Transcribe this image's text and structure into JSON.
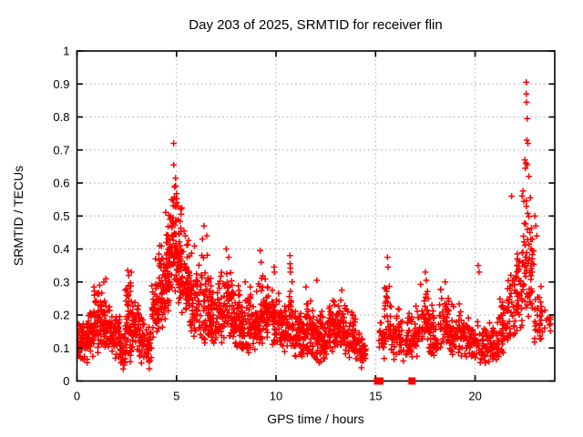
{
  "figure": {
    "title": "Day 203 of 2025, SRMTID for receiver flin",
    "xlabel": "GPS time / hours",
    "ylabel": "SRMTID / TECUs",
    "background": "#ffffff"
  },
  "chart_data": {
    "type": "scatter",
    "title": "Day 203 of 2025, SRMTID for receiver flin",
    "xlabel": "GPS time / hours",
    "ylabel": "SRMTID / TECUs",
    "xlim": [
      0,
      24
    ],
    "ylim": [
      0,
      1
    ],
    "xticks": {
      "values": [
        0,
        5,
        10,
        15,
        20
      ],
      "labels": [
        "0",
        "5",
        "10",
        "15",
        "20"
      ]
    },
    "yticks": {
      "values": [
        0,
        0.1,
        0.2,
        0.3,
        0.4,
        0.5,
        0.6,
        0.7,
        0.8,
        0.9,
        1
      ],
      "labels": [
        "0",
        "0.1",
        "0.2",
        "0.3",
        "0.4",
        "0.5",
        "0.6",
        "0.7",
        "0.8",
        "0.9",
        "1"
      ]
    },
    "grid": true,
    "legend": "none",
    "marker": "plus",
    "marker_color": "#ff0000",
    "grid_color": "#b5b5b5",
    "axis_color": "#000000",
    "seed": 7,
    "density_bands_x0_x1_count_ymin_ymode_ymax": [
      [
        0.0,
        0.45,
        55,
        0.06,
        0.1,
        0.18
      ],
      [
        0.45,
        0.8,
        45,
        0.05,
        0.11,
        0.22
      ],
      [
        0.8,
        1.1,
        40,
        0.08,
        0.14,
        0.3
      ],
      [
        1.1,
        1.45,
        45,
        0.08,
        0.16,
        0.31
      ],
      [
        1.45,
        1.8,
        40,
        0.07,
        0.13,
        0.25
      ],
      [
        1.8,
        2.15,
        45,
        0.06,
        0.12,
        0.22
      ],
      [
        2.15,
        2.4,
        26,
        0.02,
        0.08,
        0.16
      ],
      [
        2.4,
        2.75,
        55,
        0.04,
        0.15,
        0.34
      ],
      [
        2.75,
        3.1,
        40,
        0.08,
        0.15,
        0.27
      ],
      [
        3.1,
        3.45,
        35,
        0.05,
        0.11,
        0.2
      ],
      [
        3.45,
        3.75,
        32,
        0.03,
        0.1,
        0.18
      ],
      [
        3.75,
        4.1,
        45,
        0.1,
        0.2,
        0.34
      ],
      [
        4.1,
        4.45,
        55,
        0.13,
        0.26,
        0.44
      ],
      [
        4.45,
        4.75,
        55,
        0.18,
        0.35,
        0.58
      ],
      [
        4.75,
        5.05,
        60,
        0.22,
        0.42,
        0.63
      ],
      [
        5.05,
        5.35,
        55,
        0.2,
        0.35,
        0.55
      ],
      [
        5.35,
        5.7,
        50,
        0.15,
        0.28,
        0.46
      ],
      [
        5.7,
        6.2,
        55,
        0.12,
        0.24,
        0.42
      ],
      [
        6.2,
        6.6,
        45,
        0.1,
        0.2,
        0.4
      ],
      [
        6.6,
        7.0,
        50,
        0.1,
        0.18,
        0.32
      ],
      [
        7.0,
        7.45,
        50,
        0.1,
        0.18,
        0.34
      ],
      [
        7.45,
        7.8,
        40,
        0.1,
        0.2,
        0.38
      ],
      [
        7.8,
        8.25,
        55,
        0.08,
        0.15,
        0.3
      ],
      [
        8.25,
        8.7,
        50,
        0.08,
        0.14,
        0.28
      ],
      [
        8.7,
        9.2,
        55,
        0.08,
        0.15,
        0.34
      ],
      [
        9.2,
        9.7,
        55,
        0.1,
        0.18,
        0.33
      ],
      [
        9.7,
        10.2,
        55,
        0.1,
        0.17,
        0.3
      ],
      [
        10.2,
        10.6,
        45,
        0.08,
        0.14,
        0.26
      ],
      [
        10.6,
        10.85,
        28,
        0.08,
        0.15,
        0.36
      ],
      [
        10.85,
        11.3,
        50,
        0.06,
        0.12,
        0.24
      ],
      [
        11.3,
        11.75,
        50,
        0.06,
        0.13,
        0.28
      ],
      [
        11.75,
        12.2,
        50,
        0.05,
        0.11,
        0.23
      ],
      [
        12.2,
        12.65,
        48,
        0.05,
        0.11,
        0.22
      ],
      [
        12.65,
        13.1,
        50,
        0.07,
        0.14,
        0.27
      ],
      [
        13.1,
        13.55,
        50,
        0.08,
        0.15,
        0.28
      ],
      [
        13.55,
        14.0,
        45,
        0.06,
        0.12,
        0.22
      ],
      [
        14.0,
        14.5,
        45,
        0.03,
        0.09,
        0.17
      ],
      [
        15.15,
        15.45,
        20,
        0.05,
        0.11,
        0.22
      ],
      [
        15.45,
        15.7,
        22,
        0.1,
        0.2,
        0.37
      ],
      [
        15.7,
        16.2,
        40,
        0.06,
        0.13,
        0.26
      ],
      [
        16.2,
        16.7,
        40,
        0.05,
        0.11,
        0.24
      ],
      [
        16.7,
        17.2,
        42,
        0.06,
        0.12,
        0.24
      ],
      [
        17.2,
        17.7,
        45,
        0.08,
        0.16,
        0.33
      ],
      [
        17.7,
        18.2,
        42,
        0.06,
        0.13,
        0.25
      ],
      [
        18.2,
        18.7,
        45,
        0.08,
        0.16,
        0.3
      ],
      [
        18.7,
        19.2,
        42,
        0.07,
        0.13,
        0.25
      ],
      [
        19.2,
        19.7,
        42,
        0.06,
        0.12,
        0.22
      ],
      [
        19.7,
        20.2,
        42,
        0.05,
        0.11,
        0.2
      ],
      [
        20.2,
        20.7,
        40,
        0.04,
        0.09,
        0.17
      ],
      [
        20.7,
        21.2,
        40,
        0.05,
        0.1,
        0.2
      ],
      [
        21.2,
        21.6,
        38,
        0.08,
        0.15,
        0.3
      ],
      [
        21.6,
        22.0,
        38,
        0.1,
        0.18,
        0.36
      ],
      [
        22.0,
        22.35,
        38,
        0.12,
        0.25,
        0.48
      ],
      [
        22.35,
        22.65,
        36,
        0.15,
        0.35,
        0.68
      ],
      [
        22.65,
        22.95,
        36,
        0.14,
        0.3,
        0.6
      ],
      [
        22.95,
        23.35,
        32,
        0.1,
        0.17,
        0.32
      ],
      [
        23.35,
        23.8,
        12,
        0.13,
        0.17,
        0.25
      ]
    ],
    "outlier_points": [
      [
        0.85,
        0.285
      ],
      [
        0.87,
        0.26
      ],
      [
        0.9,
        0.24
      ],
      [
        1.35,
        0.3
      ],
      [
        1.45,
        0.31
      ],
      [
        2.55,
        0.335
      ],
      [
        2.6,
        0.32
      ],
      [
        3.95,
        0.37
      ],
      [
        4.86,
        0.72
      ],
      [
        4.86,
        0.655
      ],
      [
        4.95,
        0.615
      ],
      [
        6.3,
        0.43
      ],
      [
        6.38,
        0.47
      ],
      [
        6.52,
        0.44
      ],
      [
        7.5,
        0.4
      ],
      [
        7.62,
        0.375
      ],
      [
        8.45,
        0.3
      ],
      [
        9.2,
        0.395
      ],
      [
        9.25,
        0.36
      ],
      [
        9.9,
        0.345
      ],
      [
        9.92,
        0.33
      ],
      [
        10.7,
        0.38
      ],
      [
        10.7,
        0.355
      ],
      [
        10.72,
        0.33
      ],
      [
        11.5,
        0.285
      ],
      [
        12.05,
        0.305
      ],
      [
        13.3,
        0.275
      ],
      [
        15.6,
        0.375
      ],
      [
        15.62,
        0.345
      ],
      [
        17.5,
        0.33
      ],
      [
        17.55,
        0.305
      ],
      [
        18.5,
        0.3
      ],
      [
        20.15,
        0.35
      ],
      [
        20.2,
        0.33
      ],
      [
        21.83,
        0.56
      ],
      [
        22.57,
        0.905
      ],
      [
        22.57,
        0.87
      ],
      [
        22.58,
        0.845
      ],
      [
        22.62,
        0.795
      ],
      [
        22.6,
        0.73
      ],
      [
        22.65,
        0.72
      ],
      [
        22.5,
        0.67
      ],
      [
        22.55,
        0.66
      ],
      [
        22.62,
        0.655
      ],
      [
        22.52,
        0.645
      ],
      [
        22.7,
        0.62
      ],
      [
        23.0,
        0.5
      ],
      [
        23.05,
        0.47
      ],
      [
        23.1,
        0.44
      ]
    ],
    "zero_marker_squares_x": [
      15.1,
      15.22,
      16.83
    ]
  }
}
